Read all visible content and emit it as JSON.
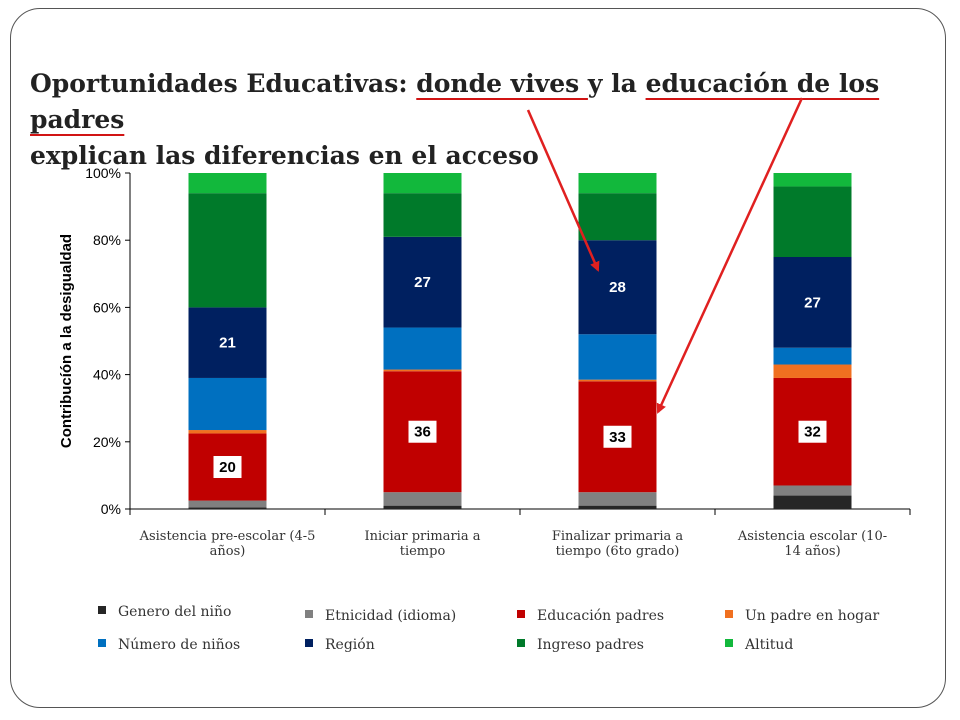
{
  "title": {
    "part1": "Oportunidades Educativas: ",
    "hl1": "donde vives ",
    "part2": "y la ",
    "hl2": "educación de los padres",
    "line2": "explican las diferencias en el acceso"
  },
  "chart_data": {
    "type": "bar",
    "stacked": true,
    "ylabel": "Contribucíón a la desigualdad",
    "ylim": [
      0,
      100
    ],
    "yticks": [
      "0%",
      "20%",
      "40%",
      "60%",
      "80%",
      "100%"
    ],
    "categories": [
      [
        "Asistencia pre-escolar (4-5",
        "años)"
      ],
      [
        "Iniciar primaria a",
        "tiempo"
      ],
      [
        "Finalizar primaria a",
        "tiempo (6to grado)"
      ],
      [
        "Asistencia escolar (10-",
        "14 años)"
      ]
    ],
    "series": [
      {
        "name": "Genero del niño",
        "color": "#262626",
        "values": [
          0.5,
          1,
          1,
          4
        ]
      },
      {
        "name": "Etnicidad  (idioma)",
        "color": "#808080",
        "values": [
          2,
          4,
          4,
          3
        ]
      },
      {
        "name": "Educación padres",
        "color": "#c00000",
        "values": [
          20,
          36,
          33,
          32
        ]
      },
      {
        "name": "Un padre en hogar",
        "color": "#f07020",
        "values": [
          1,
          0.5,
          0.5,
          4
        ]
      },
      {
        "name": "Número de niños",
        "color": "#0070c0",
        "values": [
          15.5,
          12.5,
          13.5,
          5
        ]
      },
      {
        "name": "Región",
        "color": "#002060",
        "values": [
          21,
          27,
          28,
          27
        ]
      },
      {
        "name": "Ingreso padres",
        "color": "#007a2a",
        "values": [
          34,
          13,
          14,
          21
        ]
      },
      {
        "name": "Altitud",
        "color": "#12b83c",
        "values": [
          6,
          6,
          6,
          4
        ]
      }
    ],
    "data_labels": [
      {
        "series": "Educación padres",
        "values": [
          "20",
          "36",
          "33",
          "32"
        ]
      },
      {
        "series": "Región",
        "values": [
          "21",
          "27",
          "28",
          "27"
        ]
      }
    ],
    "legend": {
      "rows": [
        [
          "Genero del niño",
          "Etnicidad  (idioma)",
          "Educación padres",
          "Un padre en hogar"
        ],
        [
          "Número de niños",
          "Región",
          "Ingreso padres",
          "Altitud"
        ]
      ]
    },
    "arrows_color": "#e02020"
  }
}
